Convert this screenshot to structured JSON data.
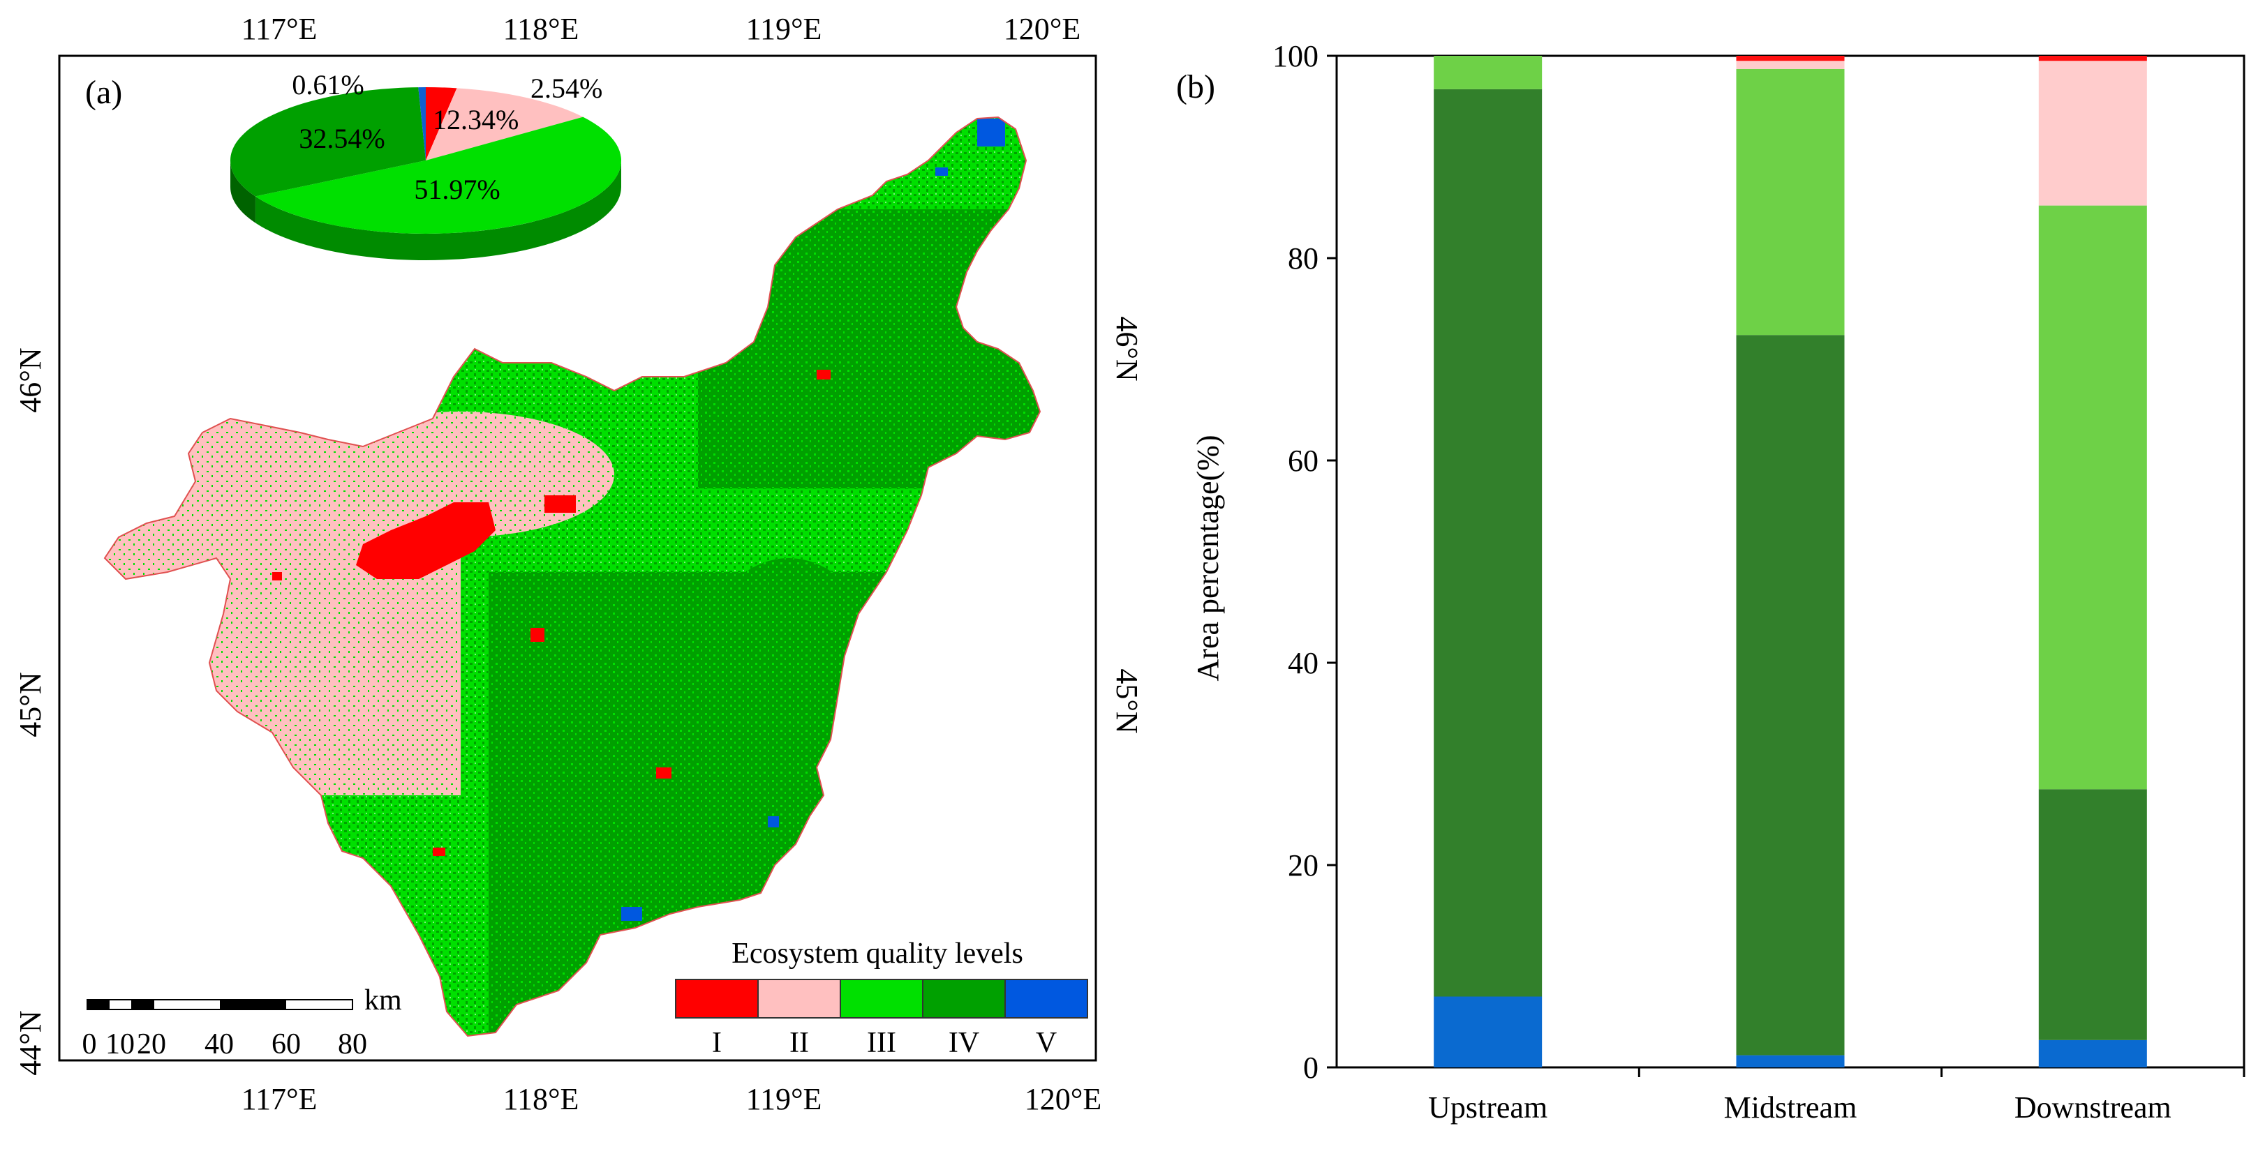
{
  "panel_a": {
    "label": "(a)",
    "lon_labels_top": [
      "117°E",
      "118°E",
      "119°E",
      "120°E"
    ],
    "lon_labels_bottom": [
      "117°E",
      "118°E",
      "119°E",
      "120°E"
    ],
    "lat_labels_left": [
      "46°N",
      "45°N",
      "44°N"
    ],
    "lat_labels_right": [
      "46°N",
      "45°N"
    ],
    "scale_bar": {
      "unit": "km",
      "ticks": [
        "0",
        "10",
        "20",
        "40",
        "60",
        "80"
      ]
    },
    "legend": {
      "title": "Ecosystem quality levels",
      "items": [
        {
          "label": "I",
          "color": "#ff0000"
        },
        {
          "label": "II",
          "color": "#ffc0c0"
        },
        {
          "label": "III",
          "color": "#00e000"
        },
        {
          "label": "IV",
          "color": "#00a000"
        },
        {
          "label": "V",
          "color": "#0058e0"
        }
      ]
    },
    "pie": {
      "title": "",
      "slices": [
        {
          "level": "I",
          "value": 2.54,
          "label": "2.54%",
          "color": "#ff0000"
        },
        {
          "level": "II",
          "value": 12.34,
          "label": "12.34%",
          "color": "#ffc0c0"
        },
        {
          "level": "III",
          "value": 51.97,
          "label": "51.97%",
          "color": "#00e000"
        },
        {
          "level": "IV",
          "value": 32.54,
          "label": "32.54%",
          "color": "#00a000"
        },
        {
          "level": "V",
          "value": 0.61,
          "label": "0.61%",
          "color": "#1060d0"
        }
      ]
    }
  },
  "chart_data": {
    "type": "bar",
    "stacked": true,
    "label": "(b)",
    "title": "",
    "xlabel": "",
    "ylabel": "Area percentage(%)",
    "ylim": [
      0,
      100
    ],
    "yticks": [
      "0",
      "20",
      "40",
      "60",
      "80",
      "100"
    ],
    "categories": [
      "Upstream",
      "Midstream",
      "Downstream"
    ],
    "series": [
      {
        "name": "V",
        "color": "#0a6ad0",
        "values": [
          7,
          1.2,
          2.7
        ]
      },
      {
        "name": "IV",
        "color": "#32802b",
        "values": [
          89.7,
          71.2,
          24.8
        ]
      },
      {
        "name": "III",
        "color": "#6ed147",
        "values": [
          3.3,
          26.3,
          57.7
        ]
      },
      {
        "name": "II",
        "color": "#ffcccc",
        "values": [
          0,
          0.8,
          14.3
        ]
      },
      {
        "name": "I",
        "color": "#ff1010",
        "values": [
          0,
          0.5,
          0.5
        ]
      }
    ]
  }
}
